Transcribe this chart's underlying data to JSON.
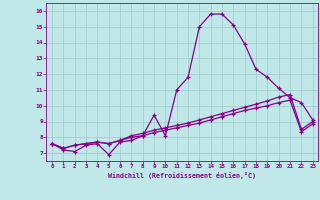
{
  "xlabel": "Windchill (Refroidissement éolien,°C)",
  "xlim": [
    -0.5,
    23.5
  ],
  "ylim": [
    6.5,
    16.5
  ],
  "xticks": [
    0,
    1,
    2,
    3,
    4,
    5,
    6,
    7,
    8,
    9,
    10,
    11,
    12,
    13,
    14,
    15,
    16,
    17,
    18,
    19,
    20,
    21,
    22,
    23
  ],
  "yticks": [
    7,
    8,
    9,
    10,
    11,
    12,
    13,
    14,
    15,
    16
  ],
  "bg_color": "#c0e8e8",
  "grid_color": "#a0c8c8",
  "line_color": "#880088",
  "series1_x": [
    0,
    1,
    2,
    3,
    4,
    5,
    6,
    7,
    8,
    9,
    10,
    11,
    12,
    13,
    14,
    15,
    16,
    17,
    18,
    19,
    20,
    21,
    22,
    23
  ],
  "series1_y": [
    7.6,
    7.2,
    7.1,
    7.5,
    7.6,
    6.9,
    7.7,
    7.8,
    8.1,
    9.4,
    8.1,
    11.0,
    11.8,
    15.0,
    15.8,
    15.8,
    15.1,
    13.9,
    12.3,
    11.8,
    11.1,
    10.5,
    10.2,
    9.1
  ],
  "series2_x": [
    0,
    1,
    2,
    3,
    4,
    5,
    6,
    7,
    8,
    9,
    10,
    11,
    12,
    13,
    14,
    15,
    16,
    17,
    18,
    19,
    20,
    21,
    22,
    23
  ],
  "series2_y": [
    7.6,
    7.3,
    7.5,
    7.6,
    7.7,
    7.6,
    7.8,
    8.1,
    8.25,
    8.45,
    8.6,
    8.75,
    8.9,
    9.1,
    9.3,
    9.5,
    9.7,
    9.9,
    10.1,
    10.3,
    10.55,
    10.7,
    8.5,
    9.0
  ],
  "series3_x": [
    0,
    1,
    2,
    3,
    4,
    5,
    6,
    7,
    8,
    9,
    10,
    11,
    12,
    13,
    14,
    15,
    16,
    17,
    18,
    19,
    20,
    21,
    22,
    23
  ],
  "series3_y": [
    7.6,
    7.3,
    7.5,
    7.6,
    7.7,
    7.6,
    7.8,
    8.0,
    8.1,
    8.3,
    8.45,
    8.6,
    8.75,
    8.9,
    9.1,
    9.3,
    9.5,
    9.7,
    9.85,
    10.0,
    10.2,
    10.35,
    8.35,
    8.85
  ]
}
